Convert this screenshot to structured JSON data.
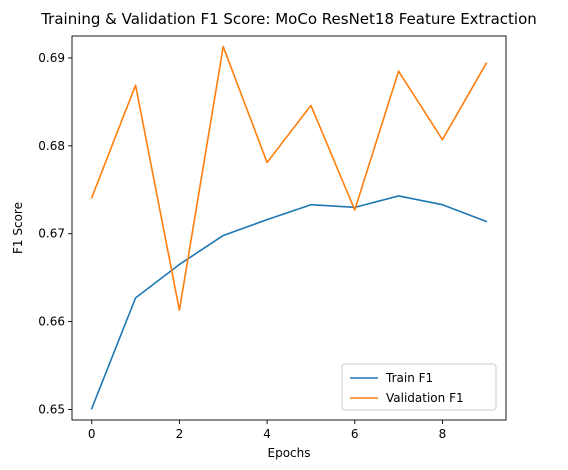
{
  "chart_data": {
    "type": "line",
    "title": "Training & Validation F1 Score: MoCo ResNet18 Feature Extraction",
    "xlabel": "Epochs",
    "ylabel": "F1 Score",
    "x": [
      0,
      1,
      2,
      3,
      4,
      5,
      6,
      7,
      8,
      9
    ],
    "xticks": [
      0,
      2,
      4,
      6,
      8
    ],
    "yticks": [
      0.65,
      0.66,
      0.67,
      0.68,
      0.69
    ],
    "ytick_labels": [
      "0.65",
      "0.66",
      "0.67",
      "0.68",
      "0.69"
    ],
    "xlim": [
      -0.45,
      9.45
    ],
    "ylim": [
      0.6488,
      0.6925
    ],
    "grid": false,
    "legend_position": "lower-right",
    "series": [
      {
        "name": "Train F1",
        "color": "#1f77b4",
        "values": [
          0.6501,
          0.6627,
          0.6665,
          0.6698,
          0.6716,
          0.6733,
          0.673,
          0.6743,
          0.6733,
          0.6714
        ]
      },
      {
        "name": "Validation F1",
        "color": "#ff7f0e",
        "values": [
          0.6741,
          0.6869,
          0.6613,
          0.6913,
          0.6781,
          0.6846,
          0.6727,
          0.6885,
          0.6807,
          0.6894
        ]
      }
    ]
  }
}
